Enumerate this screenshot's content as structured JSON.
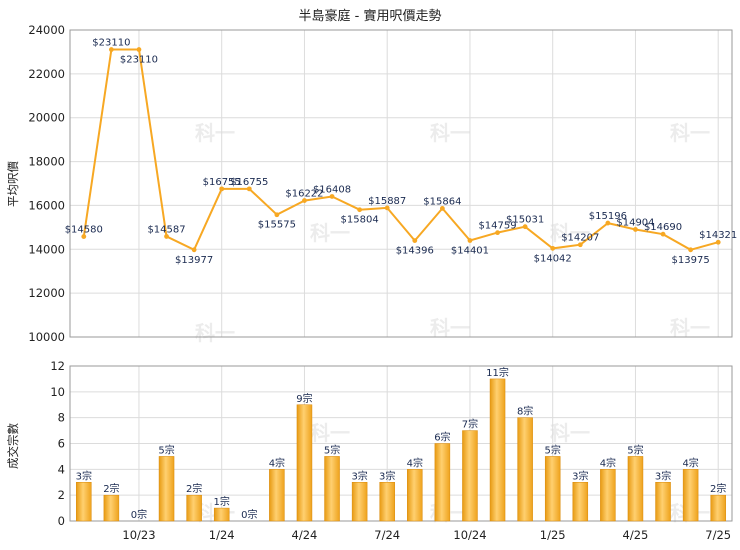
{
  "chart_data": [
    {
      "type": "line",
      "title": "半島豪庭 - 實用呎價走勢",
      "ylabel": "平均呎價",
      "ylim": [
        10000,
        24000
      ],
      "yticks": [
        "10000",
        "12000",
        "14000",
        "16000",
        "18000",
        "20000",
        "22000",
        "24000"
      ],
      "grid": true,
      "values": [
        14580,
        23110,
        23110,
        14587,
        13977,
        16755,
        16755,
        15575,
        16222,
        16408,
        15804,
        15887,
        14396,
        15864,
        14401,
        14759,
        15031,
        14042,
        14207,
        15196,
        14904,
        14690,
        13975,
        14321
      ],
      "labels": [
        "$14580",
        "$23110",
        "$23110",
        "$14587",
        "$13977",
        "$16755",
        "$16755",
        "$15575",
        "$16222",
        "$16408",
        "$15804",
        "$15887",
        "$14396",
        "$15864",
        "$14401",
        "$14759",
        "$15031",
        "$14042",
        "$14207",
        "$15196",
        "$14904",
        "$14690",
        "$13975",
        "$14321"
      ],
      "color": "#f7a823"
    },
    {
      "type": "bar",
      "ylabel": "成交宗數",
      "ylim": [
        0,
        12
      ],
      "yticks": [
        "0",
        "2",
        "4",
        "6",
        "8",
        "10",
        "12"
      ],
      "grid": true,
      "values": [
        3,
        2,
        0,
        5,
        2,
        1,
        0,
        4,
        9,
        5,
        3,
        3,
        4,
        6,
        7,
        11,
        8,
        5,
        3,
        4,
        5,
        3,
        4,
        2
      ],
      "labels": [
        "3宗",
        "2宗",
        "0宗",
        "5宗",
        "2宗",
        "1宗",
        "0宗",
        "4宗",
        "9宗",
        "5宗",
        "3宗",
        "3宗",
        "4宗",
        "6宗",
        "7宗",
        "11宗",
        "8宗",
        "5宗",
        "3宗",
        "4宗",
        "5宗",
        "3宗",
        "4宗",
        "2宗"
      ],
      "color": "#f7a823"
    }
  ],
  "x_axis": {
    "tick_labels": [
      "10/23",
      "1/24",
      "4/24",
      "7/24",
      "10/24",
      "1/25",
      "4/25",
      "7/25"
    ],
    "tick_index": [
      2.5,
      5.5,
      8.5,
      11.5,
      14.5,
      17.5,
      20.5,
      23.5
    ]
  },
  "watermark": "科一"
}
